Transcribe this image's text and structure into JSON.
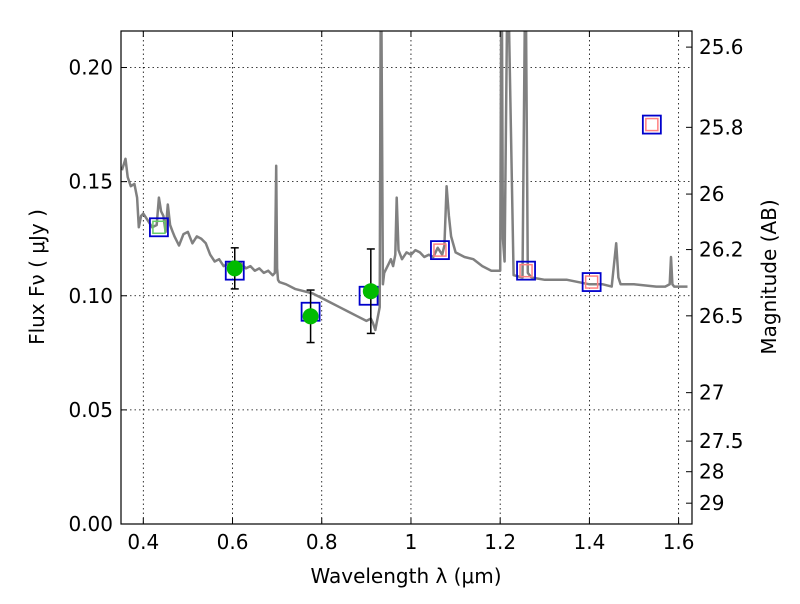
{
  "chart_data": {
    "type": "scatter",
    "xlabel": "Wavelength  λ (μm)",
    "ylabel": "Flux  Fν  ( μJy )",
    "y2label": "Magnitude (AB)",
    "xlim": [
      0.35,
      1.63
    ],
    "ylim": [
      0.0,
      0.216
    ],
    "grid": true,
    "x_ticks": [
      {
        "value": 0.4,
        "label": "0.4"
      },
      {
        "value": 0.6,
        "label": "0.6"
      },
      {
        "value": 0.8,
        "label": "0.8"
      },
      {
        "value": 1.0,
        "label": "1"
      },
      {
        "value": 1.2,
        "label": "1.2"
      },
      {
        "value": 1.4,
        "label": "1.4"
      },
      {
        "value": 1.6,
        "label": "1.6"
      }
    ],
    "y_ticks": [
      {
        "value": 0.0,
        "label": "0.00"
      },
      {
        "value": 0.05,
        "label": "0.05"
      },
      {
        "value": 0.1,
        "label": "0.10"
      },
      {
        "value": 0.15,
        "label": "0.15"
      },
      {
        "value": 0.2,
        "label": "0.20"
      }
    ],
    "mag_ticks": [
      {
        "value": 25.6,
        "label": "25.6"
      },
      {
        "value": 25.8,
        "label": "25.8"
      },
      {
        "value": 26.0,
        "label": "26"
      },
      {
        "value": 26.2,
        "label": "26.2"
      },
      {
        "value": 26.5,
        "label": "26.5"
      },
      {
        "value": 27.0,
        "label": "27"
      },
      {
        "value": 27.5,
        "label": "27.5"
      },
      {
        "value": 28.0,
        "label": "28"
      },
      {
        "value": 29.0,
        "label": "29"
      }
    ],
    "series": [
      {
        "type": "line",
        "color": "#808080",
        "x": [
          0.352,
          0.357,
          0.36,
          0.365,
          0.372,
          0.38,
          0.386,
          0.39,
          0.395,
          0.4,
          0.41,
          0.42,
          0.43,
          0.435,
          0.44,
          0.445,
          0.45,
          0.455,
          0.46,
          0.466,
          0.47,
          0.48,
          0.49,
          0.5,
          0.51,
          0.52,
          0.53,
          0.54,
          0.55,
          0.56,
          0.57,
          0.58,
          0.59,
          0.6,
          0.61,
          0.62,
          0.63,
          0.64,
          0.65,
          0.66,
          0.67,
          0.68,
          0.69,
          0.695,
          0.698,
          0.7,
          0.702,
          0.705,
          0.72,
          0.74,
          0.76,
          0.78,
          0.8,
          0.82,
          0.84,
          0.86,
          0.88,
          0.9,
          0.91,
          0.915,
          0.92,
          0.925,
          0.93,
          0.932,
          0.934,
          0.937,
          0.94,
          0.945,
          0.95,
          0.955,
          0.96,
          0.965,
          0.968,
          0.972,
          0.98,
          0.99,
          1.0,
          1.01,
          1.02,
          1.03,
          1.04,
          1.05,
          1.06,
          1.07,
          1.075,
          1.08,
          1.085,
          1.09,
          1.1,
          1.12,
          1.14,
          1.16,
          1.18,
          1.19,
          1.2,
          1.202,
          1.204,
          1.206,
          1.21,
          1.215,
          1.22,
          1.23,
          1.25,
          1.255,
          1.258,
          1.262,
          1.27,
          1.3,
          1.35,
          1.4,
          1.43,
          1.45,
          1.46,
          1.465,
          1.47,
          1.5,
          1.55,
          1.57,
          1.58,
          1.583,
          1.586,
          1.59,
          1.62
        ],
        "y": [
          0.155,
          0.158,
          0.16,
          0.152,
          0.148,
          0.149,
          0.143,
          0.13,
          0.135,
          0.136,
          0.133,
          0.13,
          0.131,
          0.143,
          0.137,
          0.135,
          0.128,
          0.14,
          0.131,
          0.128,
          0.126,
          0.122,
          0.127,
          0.128,
          0.123,
          0.126,
          0.125,
          0.123,
          0.118,
          0.115,
          0.116,
          0.113,
          0.114,
          0.114,
          0.113,
          0.114,
          0.112,
          0.113,
          0.111,
          0.112,
          0.11,
          0.111,
          0.109,
          0.11,
          0.157,
          0.112,
          0.107,
          0.106,
          0.105,
          0.103,
          0.102,
          0.101,
          0.099,
          0.097,
          0.095,
          0.093,
          0.091,
          0.089,
          0.09,
          0.088,
          0.085,
          0.09,
          0.095,
          0.216,
          0.216,
          0.105,
          0.11,
          0.112,
          0.114,
          0.116,
          0.113,
          0.118,
          0.143,
          0.12,
          0.116,
          0.119,
          0.118,
          0.12,
          0.119,
          0.117,
          0.118,
          0.117,
          0.121,
          0.118,
          0.122,
          0.148,
          0.135,
          0.126,
          0.119,
          0.117,
          0.116,
          0.113,
          0.111,
          0.111,
          0.111,
          0.216,
          0.216,
          0.125,
          0.115,
          0.216,
          0.216,
          0.109,
          0.108,
          0.216,
          0.216,
          0.11,
          0.108,
          0.107,
          0.107,
          0.105,
          0.105,
          0.104,
          0.123,
          0.108,
          0.105,
          0.105,
          0.104,
          0.104,
          0.105,
          0.117,
          0.105,
          0.104,
          0.104
        ]
      },
      {
        "type": "squares",
        "x": [
          0.435,
          0.605,
          0.775,
          0.905,
          1.065,
          1.258,
          1.405,
          1.54
        ],
        "y": [
          0.13,
          0.111,
          0.093,
          0.1,
          0.12,
          0.111,
          0.106,
          0.175
        ],
        "fill": [
          "#66cc66",
          null,
          null,
          null,
          "#ff8080",
          "#ff8080",
          "#ff8080",
          "#ff8080"
        ]
      },
      {
        "type": "points",
        "color": "#00bb00",
        "x": [
          0.605,
          0.775,
          0.91
        ],
        "y": [
          0.112,
          0.091,
          0.102
        ],
        "yerr": [
          0.009,
          0.0115,
          0.0185
        ]
      }
    ]
  }
}
